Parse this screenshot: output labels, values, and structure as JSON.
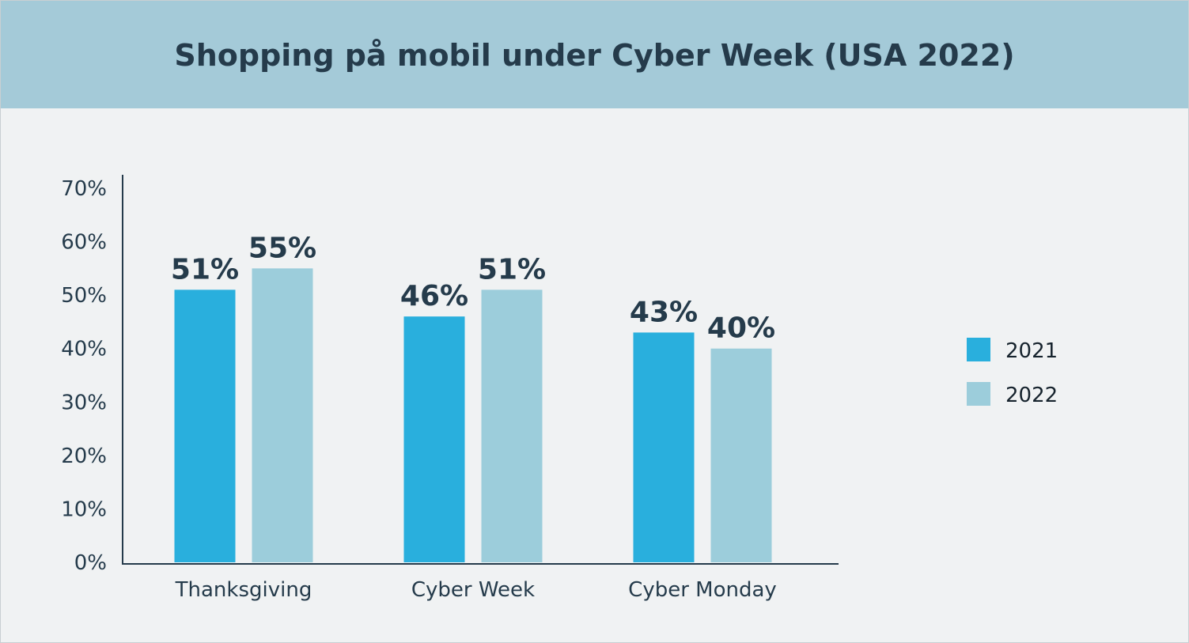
{
  "chart_data": {
    "type": "bar",
    "title": "Shopping på mobil under Cyber Week (USA 2022)",
    "categories": [
      "Thanksgiving",
      "Cyber Week",
      "Cyber Monday"
    ],
    "series": [
      {
        "name": "2021",
        "values": [
          51,
          46,
          43
        ],
        "labels": [
          "51%",
          "46%",
          "43%"
        ],
        "color": "#29afdd"
      },
      {
        "name": "2022",
        "values": [
          55,
          51,
          40
        ],
        "labels": [
          "55%",
          "51%",
          "40%"
        ],
        "color": "#9ccddb"
      }
    ],
    "ylim": [
      0,
      70
    ],
    "yticks": [
      {
        "value": 0,
        "label": "0%"
      },
      {
        "value": 10,
        "label": "10%"
      },
      {
        "value": 20,
        "label": "20%"
      },
      {
        "value": 30,
        "label": "30%"
      },
      {
        "value": 40,
        "label": "40%"
      },
      {
        "value": 50,
        "label": "50%"
      },
      {
        "value": 60,
        "label": "60%"
      },
      {
        "value": 70,
        "label": "70%"
      }
    ],
    "grid": false,
    "legend_position": "right",
    "colors": {
      "header": "#a4cad8",
      "background": "#f0f2f3",
      "text": "#253b4b",
      "axis": "#253b4b"
    }
  }
}
